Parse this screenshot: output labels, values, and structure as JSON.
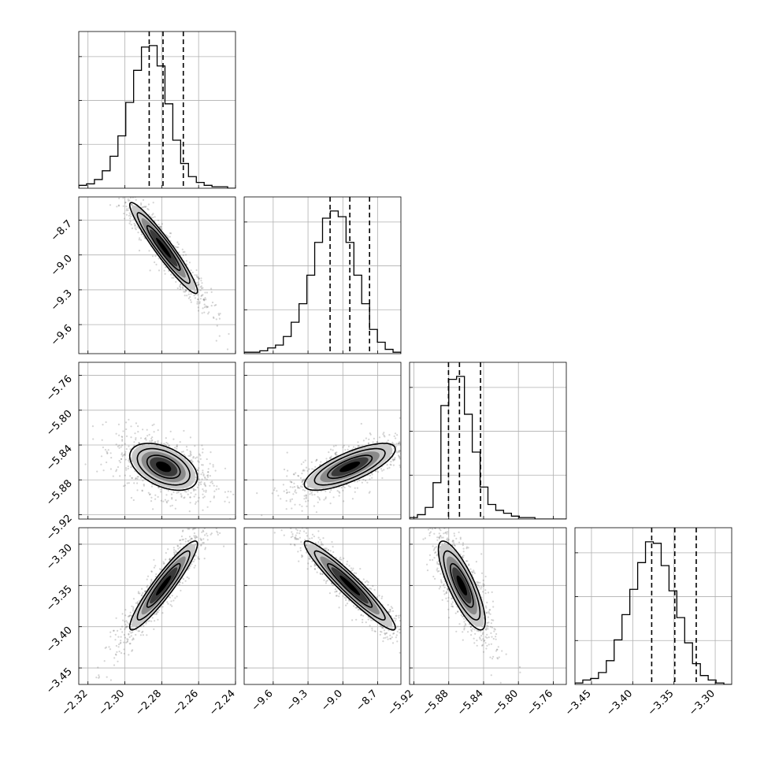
{
  "chart_data": {
    "type": "corner",
    "params": [
      {
        "range": [
          -2.325,
          -2.24
        ],
        "ticks": [
          -2.32,
          -2.3,
          -2.28,
          -2.26,
          -2.24
        ],
        "tick_labels": [
          "−2.32",
          "−2.30",
          "−2.28",
          "−2.26",
          "−2.24"
        ],
        "mean": -2.279,
        "sd": 0.0075,
        "quantiles": [
          -2.2868,
          -2.2793,
          -2.2683
        ],
        "hist_counts": [
          2,
          3,
          6,
          12,
          22,
          36,
          59,
          81,
          97,
          98,
          84,
          58,
          33,
          17,
          8,
          4,
          2,
          1,
          1,
          0
        ]
      },
      {
        "range": [
          -9.85,
          -8.5
        ],
        "ticks": [
          -9.6,
          -9.3,
          -9.0,
          -8.7
        ],
        "tick_labels": [
          "−9.6",
          "−9.3",
          "−9.0",
          "−8.7"
        ],
        "mean": -8.94,
        "sd": 0.16,
        "quantiles": [
          -9.11,
          -8.94,
          -8.77
        ],
        "hist_counts": [
          1,
          1,
          2,
          4,
          6,
          12,
          22,
          35,
          55,
          78,
          95,
          100,
          96,
          78,
          55,
          35,
          17,
          8,
          3,
          1
        ]
      },
      {
        "range": [
          -5.925,
          -5.745
        ],
        "ticks": [
          -5.92,
          -5.88,
          -5.84,
          -5.8,
          -5.76
        ],
        "tick_labels": [
          "−5.92",
          "−5.88",
          "−5.84",
          "−5.80",
          "−5.76"
        ],
        "mean": -5.865,
        "sd": 0.011,
        "quantiles": [
          -5.8803,
          -5.8677,
          -5.8435
        ],
        "hist_counts": [
          1,
          3,
          8,
          25,
          78,
          96,
          98,
          72,
          46,
          22,
          10,
          6,
          4,
          2,
          1,
          1,
          0,
          0,
          0,
          0
        ]
      },
      {
        "range": [
          -3.47,
          -3.28
        ],
        "ticks": [
          -3.45,
          -3.4,
          -3.35,
          -3.3
        ],
        "tick_labels": [
          "−3.45",
          "−3.40",
          "−3.35",
          "−3.30"
        ],
        "mean": -3.35,
        "sd": 0.022,
        "quantiles": [
          -3.377,
          -3.349,
          -3.323
        ],
        "hist_counts": [
          1,
          3,
          4,
          8,
          16,
          30,
          47,
          64,
          82,
          96,
          95,
          80,
          63,
          45,
          28,
          14,
          6,
          3,
          1,
          0
        ]
      }
    ],
    "correlations": [
      [
        1.0,
        -0.95,
        -0.45,
        0.93
      ],
      [
        -0.95,
        1.0,
        0.75,
        -0.95
      ],
      [
        -0.45,
        0.75,
        1.0,
        -0.8
      ],
      [
        0.93,
        -0.95,
        -0.8,
        1.0
      ]
    ],
    "scatter_points_per_panel": 900,
    "grid": true,
    "scatter_color": "#555555"
  }
}
